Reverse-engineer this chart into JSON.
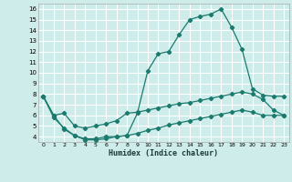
{
  "xlabel": "Humidex (Indice chaleur)",
  "bg_color": "#ceecea",
  "grid_color": "#ffffff",
  "line_color": "#1a7a6e",
  "xlim": [
    -0.5,
    23.5
  ],
  "ylim": [
    3.5,
    16.5
  ],
  "xticks": [
    0,
    1,
    2,
    3,
    4,
    5,
    6,
    7,
    8,
    9,
    10,
    11,
    12,
    13,
    14,
    15,
    16,
    17,
    18,
    19,
    20,
    21,
    22,
    23
  ],
  "yticks": [
    4,
    5,
    6,
    7,
    8,
    9,
    10,
    11,
    12,
    13,
    14,
    15,
    16
  ],
  "line1_x": [
    0,
    1,
    2,
    3,
    4,
    5,
    6,
    7,
    8,
    9,
    10,
    11,
    12,
    13,
    14,
    15,
    16,
    17,
    18,
    19,
    20,
    21,
    22,
    23
  ],
  "line1_y": [
    7.8,
    6.0,
    4.7,
    4.1,
    3.8,
    3.8,
    4.0,
    4.0,
    4.1,
    6.2,
    10.2,
    11.8,
    12.0,
    13.6,
    15.0,
    15.3,
    15.5,
    16.0,
    14.3,
    12.2,
    8.5,
    7.9,
    7.8,
    7.8
  ],
  "line2_x": [
    0,
    1,
    2,
    3,
    4,
    5,
    6,
    7,
    8,
    9,
    10,
    11,
    12,
    13,
    14,
    15,
    16,
    17,
    18,
    19,
    20,
    21,
    22,
    23
  ],
  "line2_y": [
    7.8,
    6.0,
    6.2,
    5.0,
    4.8,
    5.0,
    5.2,
    5.5,
    6.2,
    6.3,
    6.5,
    6.7,
    6.9,
    7.1,
    7.2,
    7.4,
    7.6,
    7.8,
    8.0,
    8.2,
    8.0,
    7.5,
    6.5,
    6.0
  ],
  "line3_x": [
    0,
    1,
    2,
    3,
    4,
    5,
    6,
    7,
    8,
    9,
    10,
    11,
    12,
    13,
    14,
    15,
    16,
    17,
    18,
    19,
    20,
    21,
    22,
    23
  ],
  "line3_y": [
    7.8,
    5.8,
    4.8,
    4.1,
    3.7,
    3.7,
    3.8,
    4.0,
    4.1,
    4.3,
    4.6,
    4.8,
    5.1,
    5.3,
    5.5,
    5.7,
    5.9,
    6.1,
    6.3,
    6.5,
    6.3,
    6.0,
    6.0,
    6.0
  ]
}
